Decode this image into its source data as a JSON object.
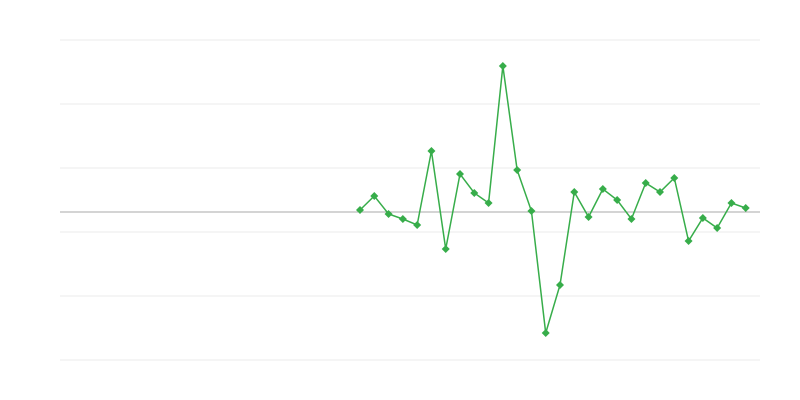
{
  "chart_data": {
    "type": "line",
    "x": [
      21,
      22,
      23,
      24,
      25,
      26,
      27,
      28,
      29,
      30,
      31,
      32,
      33,
      34,
      35,
      36,
      37,
      38,
      39,
      40,
      41,
      42,
      43,
      44,
      45,
      46,
      47,
      48
    ],
    "values": [
      0.5,
      4,
      -0.5,
      -1.75,
      -3.25,
      15.25,
      -9.25,
      9.5,
      4.75,
      2.25,
      36.5,
      10.5,
      0.25,
      -30.25,
      -18.25,
      5,
      -1.25,
      5.75,
      3,
      -1.75,
      7.25,
      5,
      8.5,
      -7.25,
      -1.5,
      -4,
      2.25,
      1
    ],
    "color": "#37ad4a",
    "xlim": [
      0,
      49
    ],
    "ylim": [
      -37,
      43
    ],
    "yticks": [
      -37,
      -21,
      -5,
      11,
      27,
      43
    ],
    "grid": true,
    "zero_line": true,
    "markers": "diamond"
  }
}
